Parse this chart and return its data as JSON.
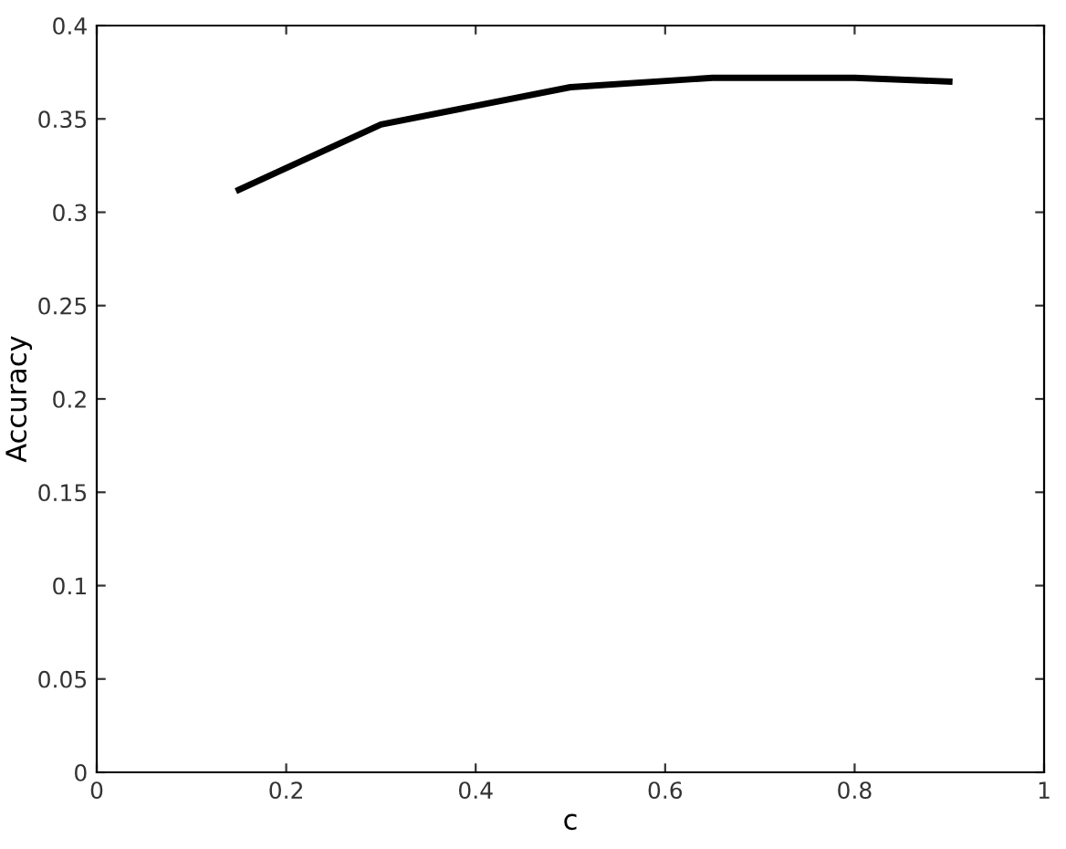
{
  "chart_data": {
    "type": "line",
    "xlabel": "c",
    "ylabel": "Accuracy",
    "x": [
      0.15,
      0.3,
      0.5,
      0.65,
      0.8,
      0.9
    ],
    "series": [
      {
        "color": "#000000",
        "values": [
          0.312,
          0.347,
          0.367,
          0.372,
          0.372,
          0.37
        ]
      }
    ],
    "xlim": [
      0,
      1
    ],
    "xticks": [
      0,
      0.2,
      0.4,
      0.6,
      0.8,
      1
    ],
    "ylim": [
      0,
      0.4
    ],
    "yticks": [
      0,
      0.05,
      0.1,
      0.15,
      0.2,
      0.25,
      0.3,
      0.35,
      0.4
    ],
    "grid": false,
    "marker": "none",
    "line_style": "solid"
  }
}
